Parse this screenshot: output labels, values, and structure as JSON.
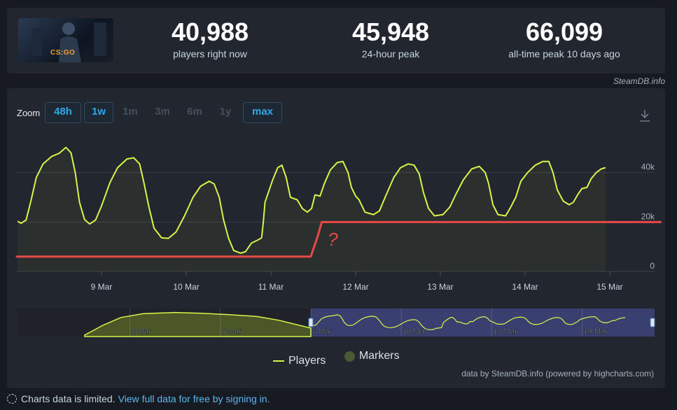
{
  "header": {
    "game_logo_text": "CS:GO",
    "stats": [
      {
        "value": "40,988",
        "label": "players right now"
      },
      {
        "value": "45,948",
        "label": "24-hour peak"
      },
      {
        "value": "66,099",
        "label": "all-time peak 10 days ago"
      }
    ],
    "credit": "SteamDB.info"
  },
  "zoom": {
    "label": "Zoom",
    "options": [
      {
        "label": "48h",
        "active": true
      },
      {
        "label": "1w",
        "active": true
      },
      {
        "label": "1m",
        "active": false
      },
      {
        "label": "3m",
        "active": false
      },
      {
        "label": "6m",
        "active": false
      },
      {
        "label": "1y",
        "active": false
      },
      {
        "label": "max",
        "active": true
      }
    ],
    "download_icon": "download-icon"
  },
  "chart_data": {
    "type": "line",
    "title": "",
    "xlabel": "",
    "ylabel": "",
    "ylim": [
      0,
      60000
    ],
    "yticks": [
      {
        "value": 0,
        "label": "0"
      },
      {
        "value": 20000,
        "label": "20k"
      },
      {
        "value": 40000,
        "label": "40k"
      }
    ],
    "xticks": [
      {
        "day": 9,
        "label": "9 Mar"
      },
      {
        "day": 10,
        "label": "10 Mar"
      },
      {
        "day": 11,
        "label": "11 Mar"
      },
      {
        "day": 12,
        "label": "12 Mar"
      },
      {
        "day": 13,
        "label": "13 Mar"
      },
      {
        "day": 14,
        "label": "14 Mar"
      },
      {
        "day": 15,
        "label": "15 Mar"
      }
    ],
    "x_unit": "day of March 2023",
    "grid": true,
    "series": [
      {
        "name": "Players",
        "color": "#d8f34a",
        "points": [
          [
            8.01,
            20300
          ],
          [
            8.05,
            19500
          ],
          [
            8.11,
            20800
          ],
          [
            8.17,
            29000
          ],
          [
            8.23,
            38000
          ],
          [
            8.31,
            43500
          ],
          [
            8.41,
            46500
          ],
          [
            8.5,
            47800
          ],
          [
            8.58,
            50200
          ],
          [
            8.64,
            48000
          ],
          [
            8.69,
            40000
          ],
          [
            8.74,
            28000
          ],
          [
            8.8,
            21000
          ],
          [
            8.86,
            19200
          ],
          [
            8.93,
            20800
          ],
          [
            9.0,
            26500
          ],
          [
            9.1,
            36000
          ],
          [
            9.19,
            42000
          ],
          [
            9.3,
            45500
          ],
          [
            9.38,
            46000
          ],
          [
            9.45,
            43500
          ],
          [
            9.5,
            36000
          ],
          [
            9.56,
            26000
          ],
          [
            9.62,
            17500
          ],
          [
            9.71,
            13600
          ],
          [
            9.79,
            13400
          ],
          [
            9.88,
            16000
          ],
          [
            9.98,
            22500
          ],
          [
            10.08,
            30000
          ],
          [
            10.17,
            34500
          ],
          [
            10.27,
            36500
          ],
          [
            10.33,
            35400
          ],
          [
            10.39,
            30000
          ],
          [
            10.44,
            21000
          ],
          [
            10.5,
            13400
          ],
          [
            10.56,
            8500
          ],
          [
            10.64,
            7400
          ],
          [
            10.7,
            8000
          ],
          [
            10.77,
            11500
          ],
          [
            10.85,
            12800
          ],
          [
            10.89,
            13600
          ],
          [
            10.91,
            20000
          ],
          [
            10.93,
            28000
          ],
          [
            10.97,
            32000
          ],
          [
            11.02,
            37000
          ],
          [
            11.08,
            42000
          ],
          [
            11.13,
            43000
          ],
          [
            11.18,
            38000
          ],
          [
            11.23,
            30000
          ],
          [
            11.31,
            29000
          ],
          [
            11.37,
            25500
          ],
          [
            11.43,
            24000
          ],
          [
            11.48,
            25500
          ],
          [
            11.52,
            31000
          ],
          [
            11.58,
            30500
          ],
          [
            11.63,
            35500
          ],
          [
            11.7,
            41000
          ],
          [
            11.78,
            44000
          ],
          [
            11.85,
            44500
          ],
          [
            11.91,
            40000
          ],
          [
            11.95,
            34000
          ],
          [
            12.0,
            30500
          ],
          [
            12.04,
            29000
          ],
          [
            12.11,
            24000
          ],
          [
            12.21,
            23000
          ],
          [
            12.28,
            24500
          ],
          [
            12.36,
            31000
          ],
          [
            12.45,
            38000
          ],
          [
            12.53,
            42000
          ],
          [
            12.62,
            43500
          ],
          [
            12.69,
            43000
          ],
          [
            12.75,
            39500
          ],
          [
            12.8,
            32000
          ],
          [
            12.86,
            25500
          ],
          [
            12.93,
            22500
          ],
          [
            13.03,
            23000
          ],
          [
            13.11,
            26000
          ],
          [
            13.18,
            31000
          ],
          [
            13.27,
            37000
          ],
          [
            13.37,
            41500
          ],
          [
            13.46,
            42500
          ],
          [
            13.53,
            40000
          ],
          [
            13.57,
            35500
          ],
          [
            13.62,
            27000
          ],
          [
            13.68,
            23000
          ],
          [
            13.77,
            22500
          ],
          [
            13.83,
            26000
          ],
          [
            13.89,
            30000
          ],
          [
            13.95,
            36500
          ],
          [
            14.03,
            40000
          ],
          [
            14.12,
            43000
          ],
          [
            14.21,
            44500
          ],
          [
            14.28,
            44500
          ],
          [
            14.33,
            40000
          ],
          [
            14.38,
            33000
          ],
          [
            14.45,
            28500
          ],
          [
            14.52,
            27000
          ],
          [
            14.57,
            28000
          ],
          [
            14.62,
            31000
          ],
          [
            14.67,
            33500
          ],
          [
            14.73,
            34000
          ],
          [
            14.78,
            37500
          ],
          [
            14.84,
            40000
          ],
          [
            14.9,
            41500
          ],
          [
            14.95,
            42000
          ]
        ]
      }
    ],
    "annotations": [
      {
        "type": "drawn-line",
        "color": "#e84848",
        "points": [
          [
            8.0,
            6000
          ],
          [
            11.47,
            6000
          ],
          [
            11.55,
            14000
          ],
          [
            11.6,
            20000
          ],
          [
            15.6,
            20000
          ]
        ]
      },
      {
        "type": "text",
        "text": "?",
        "color": "#e84848",
        "x": 11.73,
        "y": 10500
      }
    ],
    "navigator": {
      "xticks": [
        {
          "day": 4,
          "label": "4 Mar"
        },
        {
          "day": 6,
          "label": "6 Mar"
        },
        {
          "day": 8,
          "label": "8 Mar"
        },
        {
          "day": 10,
          "label": "10 Mar"
        },
        {
          "day": 12,
          "label": "12 Mar"
        },
        {
          "day": 14,
          "label": "14 Mar"
        }
      ],
      "selected_range": [
        8.0,
        15.0
      ],
      "overview_points": [
        [
          3.0,
          0.05
        ],
        [
          3.4,
          0.4
        ],
        [
          3.8,
          0.68
        ],
        [
          4.3,
          0.82
        ],
        [
          5.0,
          0.86
        ],
        [
          5.6,
          0.83
        ],
        [
          6.2,
          0.78
        ],
        [
          6.8,
          0.72
        ],
        [
          7.3,
          0.58
        ],
        [
          7.9,
          0.34
        ],
        [
          8.0,
          0.3
        ]
      ]
    },
    "legend": {
      "position": "bottom-center"
    }
  },
  "legend": {
    "players_label": "Players",
    "markers_label": "Markers"
  },
  "credit_bottom": "data by SteamDB.info (powered by highcharts.com)",
  "footer": {
    "text": "Charts data is limited.",
    "link": "View full data for free by signing in."
  }
}
